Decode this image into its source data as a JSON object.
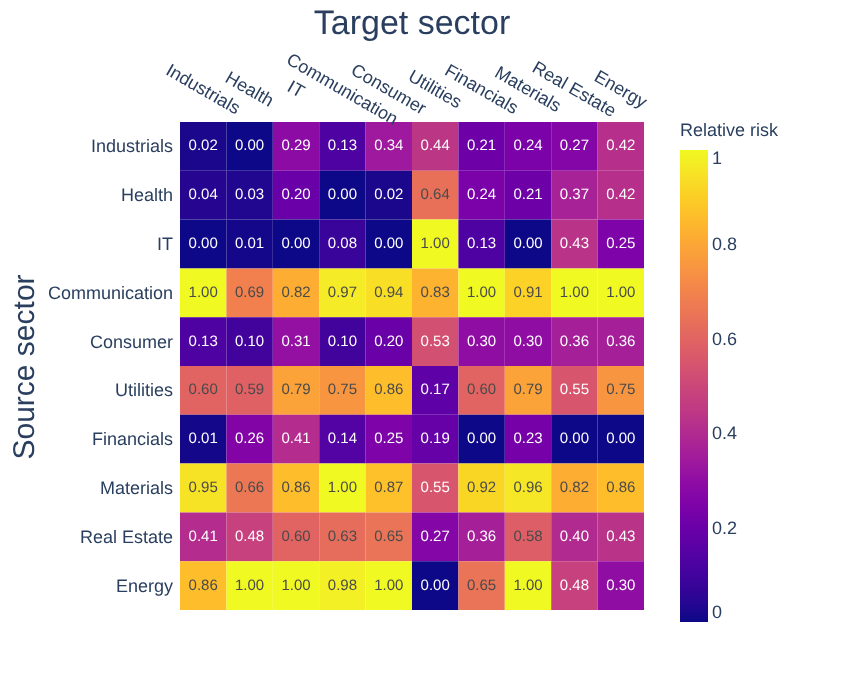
{
  "chart_data": {
    "type": "heatmap",
    "title": "Target sector",
    "ylabel": "Source sector",
    "clabel": "Relative risk",
    "categories": [
      "Industrials",
      "Health",
      "IT",
      "Communication",
      "Consumer",
      "Utilities",
      "Financials",
      "Materials",
      "Real Estate",
      "Energy"
    ],
    "y_categories": [
      "Industrials",
      "Health",
      "IT",
      "Communication",
      "Consumer",
      "Utilities",
      "Financials",
      "Materials",
      "Real Estate",
      "Energy"
    ],
    "cells": [
      [
        0.02,
        0.0,
        0.29,
        0.13,
        0.34,
        0.44,
        0.21,
        0.24,
        0.27,
        0.42
      ],
      [
        0.04,
        0.03,
        0.2,
        0.0,
        0.02,
        0.64,
        0.24,
        0.21,
        0.37,
        0.42
      ],
      [
        0.0,
        0.01,
        0.0,
        0.08,
        0.0,
        1.0,
        0.13,
        0.0,
        0.43,
        0.25
      ],
      [
        1.0,
        0.69,
        0.82,
        0.97,
        0.94,
        0.83,
        1.0,
        0.91,
        1.0,
        1.0
      ],
      [
        0.13,
        0.1,
        0.31,
        0.1,
        0.2,
        0.53,
        0.3,
        0.3,
        0.36,
        0.36
      ],
      [
        0.6,
        0.59,
        0.79,
        0.75,
        0.86,
        0.17,
        0.6,
        0.79,
        0.55,
        0.75
      ],
      [
        0.01,
        0.26,
        0.41,
        0.14,
        0.25,
        0.19,
        0.0,
        0.23,
        0.0,
        0.0
      ],
      [
        0.95,
        0.66,
        0.86,
        1.0,
        0.87,
        0.55,
        0.92,
        0.96,
        0.82,
        0.86
      ],
      [
        0.41,
        0.48,
        0.6,
        0.63,
        0.65,
        0.27,
        0.36,
        0.58,
        0.4,
        0.43
      ],
      [
        0.86,
        1.0,
        1.0,
        0.98,
        1.0,
        0.0,
        0.65,
        1.0,
        0.48,
        0.3
      ]
    ],
    "cell_labels": [
      [
        "0.02",
        "0.00",
        "0.29",
        "0.13",
        "0.34",
        "0.44",
        "0.21",
        "0.24",
        "0.27",
        "0.42"
      ],
      [
        "0.04",
        "0.03",
        "0.20",
        "0.00",
        "0.02",
        "0.64",
        "0.24",
        "0.21",
        "0.37",
        "0.42"
      ],
      [
        "0.00",
        "0.01",
        "0.00",
        "0.08",
        "0.00",
        "1.00",
        "0.13",
        "0.00",
        "0.43",
        "0.25"
      ],
      [
        "1.00",
        "0.69",
        "0.82",
        "0.97",
        "0.94",
        "0.83",
        "1.00",
        "0.91",
        "1.00",
        "1.00"
      ],
      [
        "0.13",
        "0.10",
        "0.31",
        "0.10",
        "0.20",
        "0.53",
        "0.30",
        "0.30",
        "0.36",
        "0.36"
      ],
      [
        "0.60",
        "0.59",
        "0.79",
        "0.75",
        "0.86",
        "0.17",
        "0.60",
        "0.79",
        "0.55",
        "0.75"
      ],
      [
        "0.01",
        "0.26",
        "0.41",
        "0.14",
        "0.25",
        "0.19",
        "0.00",
        "0.23",
        "0.00",
        "0.00"
      ],
      [
        "0.95",
        "0.66",
        "0.86",
        "1.00",
        "0.87",
        "0.55",
        "0.92",
        "0.96",
        "0.82",
        "0.86"
      ],
      [
        "0.41",
        "0.48",
        "0.60",
        "0.63",
        "0.65",
        "0.27",
        "0.36",
        "0.58",
        "0.40",
        "0.43"
      ],
      [
        "0.86",
        "1.00",
        "1.00",
        "0.98",
        "1.00",
        "0.00",
        "0.65",
        "1.00",
        "0.48",
        "0.30"
      ]
    ],
    "clim": [
      0,
      1
    ],
    "cticks": [
      0,
      0.2,
      0.4,
      0.6,
      0.8,
      1
    ]
  }
}
